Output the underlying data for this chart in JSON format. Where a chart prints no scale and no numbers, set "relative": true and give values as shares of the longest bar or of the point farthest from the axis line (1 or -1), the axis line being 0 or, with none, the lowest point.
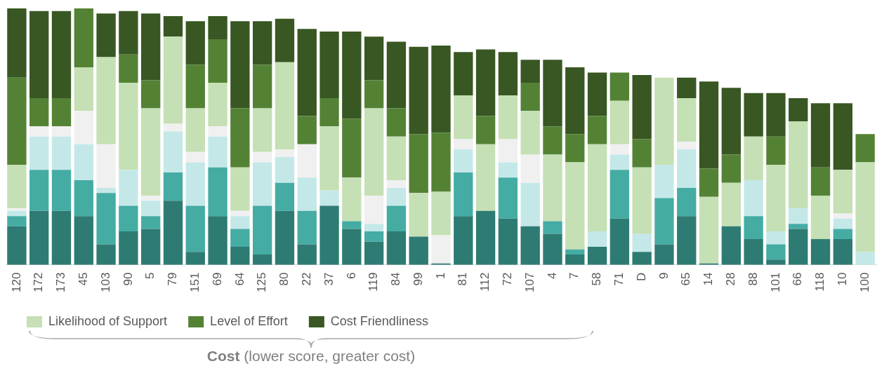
{
  "chart_data": {
    "type": "bar",
    "stacked": true,
    "relative": true,
    "legend": "bottom",
    "categories": [
      "120",
      "172",
      "173",
      "45",
      "103",
      "90",
      "5",
      "79",
      "151",
      "69",
      "64",
      "125",
      "80",
      "22",
      "37",
      "6",
      "119",
      "84",
      "99",
      "1",
      "81",
      "112",
      "72",
      "107",
      "4",
      "7",
      "58",
      "71",
      "D",
      "9",
      "65",
      "14",
      "28",
      "88",
      "101",
      "66",
      "118",
      "10",
      "100"
    ],
    "series": [
      {
        "color": "#2e7b73",
        "values": [
          0.15,
          0.21,
          0.21,
          0.19,
          0.08,
          0.13,
          0.14,
          0.25,
          0.05,
          0.19,
          0.07,
          0.04,
          0.21,
          0.08,
          0.23,
          0.14,
          0.09,
          0.13,
          0.11,
          0.005,
          0.19,
          0.21,
          0.18,
          0.15,
          0.12,
          0.04,
          0.07,
          0.18,
          0.05,
          0.08,
          0.19,
          0.005,
          0.15,
          0.1,
          0.02,
          0.14,
          0.1,
          0.1,
          0
        ]
      },
      {
        "color": "#45aca4",
        "values": [
          0.04,
          0.16,
          0.16,
          0.14,
          0.2,
          0.1,
          0.05,
          0.11,
          0.18,
          0.19,
          0.07,
          0.19,
          0.11,
          0.13,
          0,
          0.03,
          0.04,
          0.1,
          0,
          0,
          0.17,
          0,
          0.16,
          0,
          0.05,
          0.02,
          0,
          0.19,
          0,
          0.18,
          0.11,
          0,
          0,
          0.09,
          0.06,
          0.02,
          0,
          0.04,
          0
        ]
      },
      {
        "color": "#c4e8e8",
        "values": [
          0.02,
          0.13,
          0.13,
          0.14,
          0.02,
          0.14,
          0.06,
          0.16,
          0.17,
          0.12,
          0.05,
          0.17,
          0.1,
          0.13,
          0.06,
          0,
          0.03,
          0.07,
          0,
          0,
          0.09,
          0,
          0.06,
          0.17,
          0,
          0,
          0.06,
          0.06,
          0.07,
          0.13,
          0.15,
          0,
          0,
          0.14,
          0.05,
          0.06,
          0,
          0.04,
          0.05
        ]
      },
      {
        "color": "#f0f0f0",
        "values": [
          0.01,
          0.04,
          0.04,
          0.13,
          0.17,
          0,
          0.02,
          0.03,
          0.04,
          0.04,
          0.02,
          0.04,
          0.03,
          0.13,
          0,
          0,
          0.11,
          0.03,
          0,
          0.11,
          0.04,
          0,
          0.09,
          0.11,
          0,
          0,
          0,
          0.04,
          0,
          0,
          0.03,
          0,
          0,
          0,
          0,
          0,
          0,
          0.02,
          0
        ]
      },
      {
        "name": "Likelihood of Support",
        "color": "#c5e0b4",
        "values": [
          0.17,
          0,
          0,
          0.17,
          0.34,
          0.34,
          0.34,
          0.34,
          0.17,
          0.17,
          0.17,
          0.17,
          0.34,
          0,
          0.25,
          0.17,
          0.34,
          0.17,
          0.17,
          0.17,
          0.17,
          0.26,
          0.17,
          0.17,
          0.26,
          0.34,
          0.34,
          0.17,
          0.26,
          0.34,
          0.17,
          0.26,
          0.17,
          0.17,
          0.26,
          0.34,
          0.17,
          0.17,
          0.35
        ]
      },
      {
        "name": "Level of Effort",
        "color": "#548235",
        "values": [
          0.34,
          0.11,
          0.11,
          0.23,
          0,
          0.11,
          0.11,
          0,
          0.17,
          0.17,
          0.23,
          0.17,
          0,
          0.11,
          0.11,
          0.23,
          0.11,
          0.11,
          0.23,
          0.23,
          0,
          0.11,
          0,
          0.11,
          0.11,
          0.11,
          0.11,
          0.11,
          0.11,
          0,
          0,
          0.11,
          0.11,
          0,
          0.11,
          0,
          0.11,
          0,
          0.11
        ]
      },
      {
        "name": "Cost Friendliness",
        "color": "#385723",
        "values": [
          0.27,
          0.34,
          0.34,
          0,
          0.17,
          0.17,
          0.26,
          0.08,
          0.17,
          0.09,
          0.34,
          0.17,
          0.17,
          0.34,
          0.26,
          0.34,
          0.17,
          0.26,
          0.34,
          0.34,
          0.17,
          0.26,
          0.17,
          0.09,
          0.26,
          0.26,
          0.17,
          0,
          0.25,
          0,
          0.08,
          0.34,
          0.26,
          0.17,
          0.17,
          0.09,
          0.25,
          0.26,
          0
        ]
      }
    ],
    "annotations": [
      "Cost (lower score, greater cost)"
    ]
  }
}
